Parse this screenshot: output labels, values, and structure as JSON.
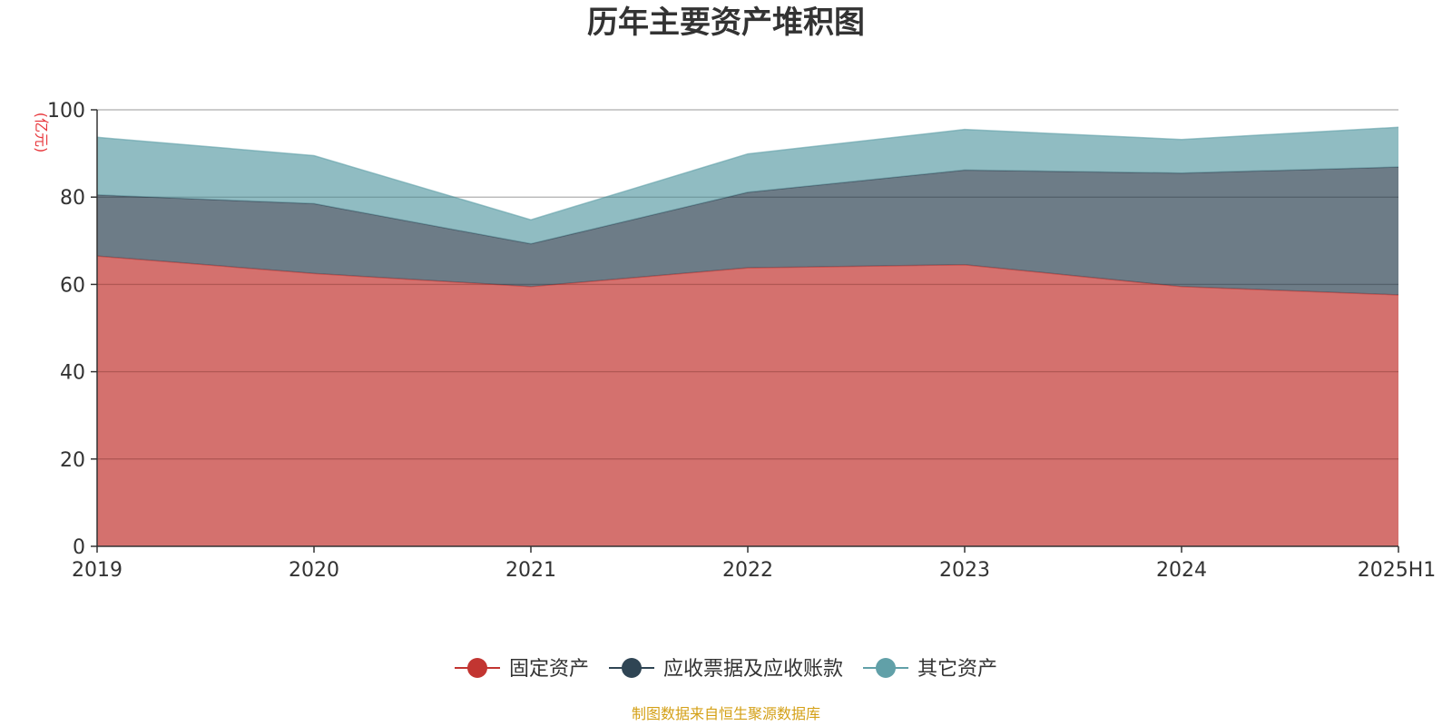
{
  "chart_data": {
    "type": "area",
    "stacked": true,
    "title": "历年主要资产堆积图",
    "y_unit": "(亿元)",
    "source": "制图数据来自恒生聚源数据库",
    "categories": [
      "2019",
      "2020",
      "2021",
      "2022",
      "2023",
      "2024",
      "2025H1"
    ],
    "ylim": [
      0,
      100
    ],
    "yticks": [
      0,
      20,
      40,
      60,
      80,
      100
    ],
    "grid": true,
    "legend_position": "bottom",
    "series": [
      {
        "name": "固定资产",
        "color": "#c23531",
        "values": [
          66.5,
          62.5,
          59.5,
          63.8,
          64.5,
          59.5,
          57.6
        ]
      },
      {
        "name": "应收票据及应收账款",
        "color": "#2f4554",
        "values": [
          14.0,
          16.0,
          9.8,
          17.3,
          21.7,
          26.0,
          29.3
        ]
      },
      {
        "name": "其它资产",
        "color": "#61a0a8",
        "values": [
          13.2,
          11.0,
          5.5,
          8.8,
          9.3,
          7.7,
          9.1
        ]
      }
    ]
  }
}
